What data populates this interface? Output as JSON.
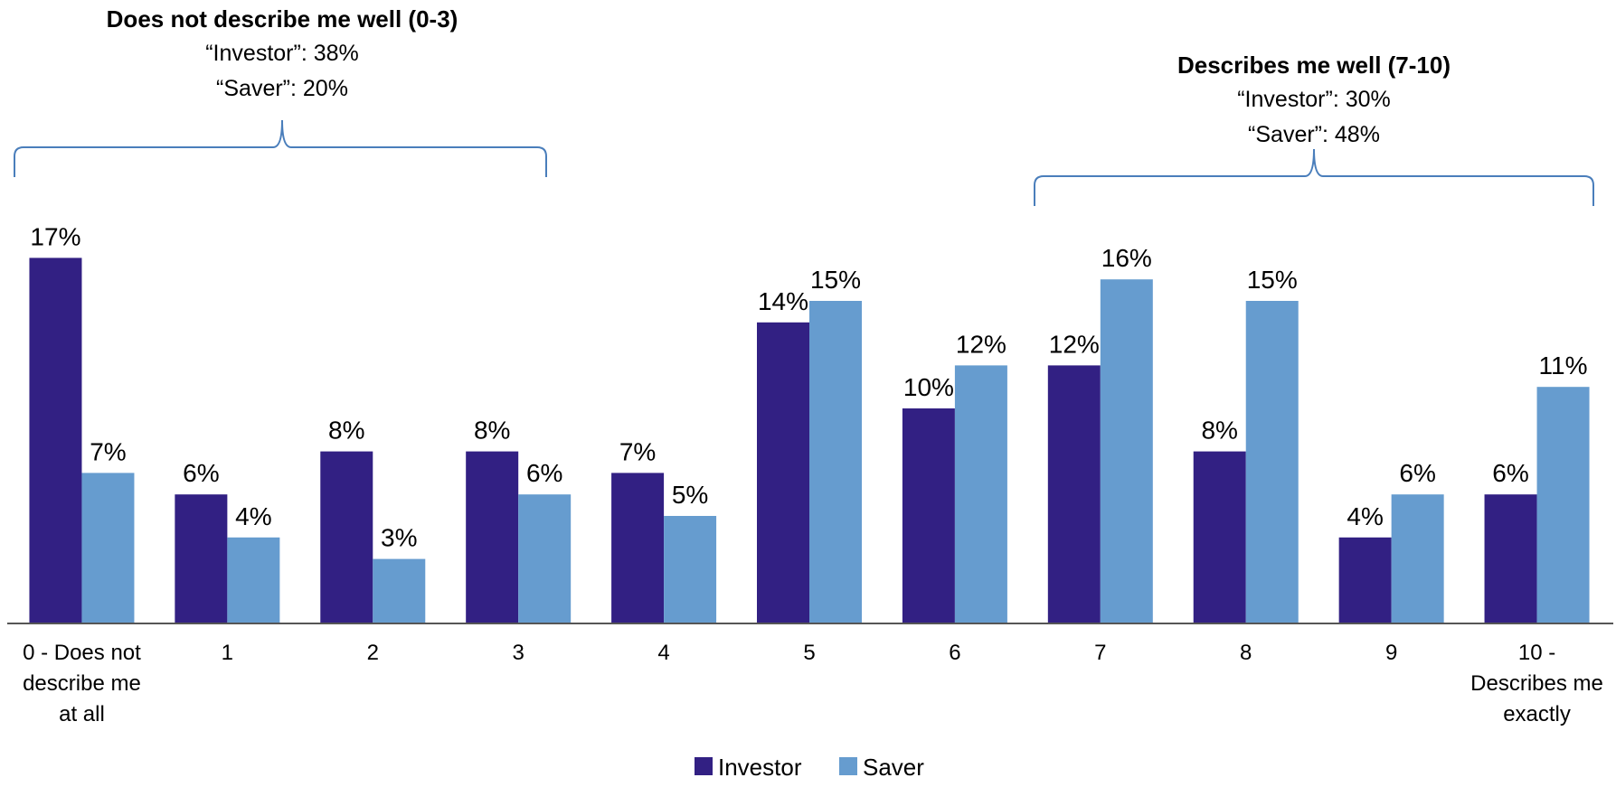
{
  "chart_data": {
    "type": "bar",
    "categories": [
      [
        "0 - Does not",
        "describe me",
        "at all"
      ],
      [
        "1"
      ],
      [
        "2"
      ],
      [
        "3"
      ],
      [
        "4"
      ],
      [
        "5"
      ],
      [
        "6"
      ],
      [
        "7"
      ],
      [
        "8"
      ],
      [
        "9"
      ],
      [
        "10 -",
        "Describes me",
        "exactly"
      ]
    ],
    "series": [
      {
        "name": "Investor",
        "color": "#322083",
        "values": [
          17,
          6,
          8,
          8,
          7,
          14,
          10,
          12,
          8,
          4,
          6
        ],
        "labels": [
          "17%",
          "6%",
          "8%",
          "8%",
          "7%",
          "14%",
          "10%",
          "12%",
          "8%",
          "4%",
          "6%"
        ]
      },
      {
        "name": "Saver",
        "color": "#669ccf",
        "values": [
          7,
          4,
          3,
          6,
          5,
          15,
          12,
          16,
          15,
          6,
          11
        ],
        "labels": [
          "7%",
          "4%",
          "3%",
          "6%",
          "5%",
          "15%",
          "12%",
          "16%",
          "15%",
          "6%",
          "11%"
        ]
      }
    ],
    "ylim": [
      0,
      17
    ],
    "grid": false,
    "legend": "bottom-center",
    "annotations": [
      {
        "title": "Does not describe me well (0-3)",
        "lines": [
          "“Investor”: 38%",
          "“Saver”: 20%"
        ],
        "range": [
          0,
          3
        ]
      },
      {
        "title": "Describes me well (7-10)",
        "lines": [
          "“Investor”: 30%",
          "“Saver”: 48%"
        ],
        "range": [
          7,
          10
        ]
      }
    ]
  }
}
